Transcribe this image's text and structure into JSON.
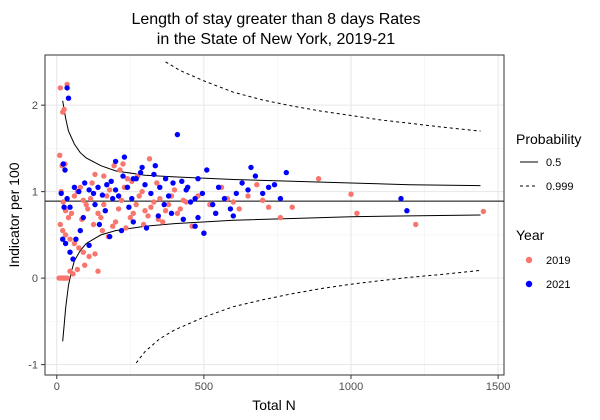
{
  "chart_data": {
    "type": "scatter",
    "title": [
      "Length of stay greater than 8 days Rates",
      "in the State of New York, 2019-21"
    ],
    "xlabel": "Total N",
    "ylabel": "Indicator per 100",
    "xlim": [
      -40,
      1520
    ],
    "ylim": [
      -1.12,
      2.58
    ],
    "x_ticks": [
      0,
      500,
      1000,
      1500
    ],
    "y_ticks": [
      -1,
      0,
      1,
      2
    ],
    "grid": true,
    "legend_position": "right",
    "reference_line": 0.89,
    "colors": {
      "2019": "#F8766D",
      "2021": "#0000FF"
    },
    "legend": {
      "probability": {
        "title": "Probability",
        "items": [
          {
            "label": "0.5",
            "linetype": "solid"
          },
          {
            "label": "0.999",
            "linetype": "dashed"
          }
        ]
      },
      "year": {
        "title": "Year",
        "items": [
          {
            "label": "2019",
            "color": "#F8766D"
          },
          {
            "label": "2021",
            "color": "#0000FF"
          }
        ]
      }
    },
    "funnel_limits": [
      {
        "probability": "0.5",
        "side": "upper",
        "points": [
          [
            20,
            2.05
          ],
          [
            30,
            1.85
          ],
          [
            40,
            1.7
          ],
          [
            60,
            1.55
          ],
          [
            80,
            1.45
          ],
          [
            100,
            1.39
          ],
          [
            150,
            1.3
          ],
          [
            200,
            1.24
          ],
          [
            300,
            1.19
          ],
          [
            400,
            1.17
          ],
          [
            600,
            1.14
          ],
          [
            800,
            1.12
          ],
          [
            1000,
            1.1
          ],
          [
            1200,
            1.08
          ],
          [
            1440,
            1.07
          ]
        ]
      },
      {
        "probability": "0.5",
        "side": "lower",
        "points": [
          [
            20,
            -0.73
          ],
          [
            25,
            -0.55
          ],
          [
            30,
            -0.35
          ],
          [
            40,
            -0.08
          ],
          [
            50,
            0.08
          ],
          [
            60,
            0.2
          ],
          [
            80,
            0.32
          ],
          [
            100,
            0.4
          ],
          [
            150,
            0.5
          ],
          [
            200,
            0.55
          ],
          [
            300,
            0.6
          ],
          [
            400,
            0.63
          ],
          [
            600,
            0.67
          ],
          [
            800,
            0.69
          ],
          [
            1000,
            0.71
          ],
          [
            1200,
            0.72
          ],
          [
            1440,
            0.73
          ]
        ]
      },
      {
        "probability": "0.999",
        "side": "upper",
        "points": [
          [
            370,
            2.5
          ],
          [
            420,
            2.4
          ],
          [
            500,
            2.28
          ],
          [
            600,
            2.15
          ],
          [
            700,
            2.06
          ],
          [
            800,
            1.99
          ],
          [
            900,
            1.93
          ],
          [
            1000,
            1.88
          ],
          [
            1100,
            1.83
          ],
          [
            1200,
            1.79
          ],
          [
            1300,
            1.75
          ],
          [
            1440,
            1.7
          ]
        ]
      },
      {
        "probability": "0.999",
        "side": "lower",
        "points": [
          [
            270,
            -0.98
          ],
          [
            300,
            -0.85
          ],
          [
            350,
            -0.7
          ],
          [
            400,
            -0.6
          ],
          [
            500,
            -0.45
          ],
          [
            600,
            -0.33
          ],
          [
            700,
            -0.25
          ],
          [
            800,
            -0.18
          ],
          [
            900,
            -0.12
          ],
          [
            1000,
            -0.07
          ],
          [
            1100,
            -0.03
          ],
          [
            1200,
            0.01
          ],
          [
            1300,
            0.04
          ],
          [
            1440,
            0.09
          ]
        ]
      }
    ],
    "series": [
      {
        "name": "2019",
        "points": [
          [
            12,
            2.2
          ],
          [
            20,
            1.92
          ],
          [
            25,
            1.95
          ],
          [
            35,
            2.24
          ],
          [
            10,
            1.42
          ],
          [
            18,
            1.3
          ],
          [
            28,
            1.32
          ],
          [
            15,
            1.0
          ],
          [
            22,
            0.88
          ],
          [
            30,
            0.78
          ],
          [
            40,
            0.7
          ],
          [
            50,
            0.75
          ],
          [
            12,
            0.62
          ],
          [
            20,
            0.55
          ],
          [
            30,
            0.5
          ],
          [
            45,
            0.45
          ],
          [
            60,
            0.4
          ],
          [
            75,
            0.35
          ],
          [
            90,
            0.3
          ],
          [
            110,
            0.25
          ],
          [
            130,
            0.28
          ],
          [
            8,
            0.0
          ],
          [
            15,
            0.0
          ],
          [
            20,
            0.0
          ],
          [
            25,
            0.0
          ],
          [
            30,
            0.0
          ],
          [
            35,
            0.0
          ],
          [
            45,
            0.08
          ],
          [
            55,
            0.05
          ],
          [
            70,
            0.1
          ],
          [
            95,
            0.15
          ],
          [
            140,
            0.08
          ],
          [
            60,
            0.95
          ],
          [
            70,
            1.0
          ],
          [
            80,
            1.05
          ],
          [
            90,
            0.9
          ],
          [
            100,
            0.85
          ],
          [
            105,
            0.8
          ],
          [
            115,
            0.92
          ],
          [
            120,
            1.1
          ],
          [
            130,
            1.2
          ],
          [
            140,
            0.75
          ],
          [
            150,
            0.7
          ],
          [
            160,
            0.85
          ],
          [
            170,
            0.95
          ],
          [
            180,
            1.02
          ],
          [
            190,
            0.6
          ],
          [
            200,
            0.65
          ],
          [
            210,
            0.8
          ],
          [
            220,
            0.9
          ],
          [
            230,
            1.05
          ],
          [
            240,
            1.15
          ],
          [
            250,
            0.7
          ],
          [
            260,
            0.75
          ],
          [
            270,
            0.85
          ],
          [
            280,
            0.95
          ],
          [
            290,
            1.0
          ],
          [
            300,
            0.78
          ],
          [
            310,
            0.72
          ],
          [
            320,
            0.82
          ],
          [
            330,
            0.88
          ],
          [
            340,
            1.1
          ],
          [
            350,
            0.92
          ],
          [
            360,
            0.65
          ],
          [
            370,
            0.78
          ],
          [
            380,
            0.85
          ],
          [
            390,
            0.95
          ],
          [
            400,
            1.02
          ],
          [
            410,
            0.75
          ],
          [
            420,
            0.8
          ],
          [
            430,
            0.9
          ],
          [
            440,
            0.88
          ],
          [
            460,
            0.6
          ],
          [
            480,
            0.95
          ],
          [
            500,
            0.52
          ],
          [
            520,
            0.85
          ],
          [
            540,
            0.75
          ],
          [
            560,
            1.05
          ],
          [
            580,
            0.92
          ],
          [
            600,
            0.88
          ],
          [
            620,
            0.8
          ],
          [
            650,
            0.95
          ],
          [
            680,
            1.08
          ],
          [
            700,
            0.9
          ],
          [
            720,
            0.82
          ],
          [
            760,
            0.7
          ],
          [
            800,
            0.82
          ],
          [
            890,
            1.15
          ],
          [
            1000,
            0.97
          ],
          [
            1020,
            0.75
          ],
          [
            1220,
            0.62
          ],
          [
            1450,
            0.77
          ],
          [
            85,
            0.68
          ],
          [
            125,
            0.62
          ],
          [
            155,
            0.55
          ],
          [
            175,
            0.48
          ],
          [
            195,
            1.3
          ],
          [
            215,
            1.25
          ],
          [
            235,
            0.58
          ],
          [
            255,
            1.12
          ],
          [
            275,
            1.18
          ],
          [
            295,
            0.62
          ],
          [
            315,
            1.38
          ],
          [
            345,
            0.68
          ],
          [
            225,
            1.32
          ],
          [
            160,
            1.18
          ]
        ]
      },
      {
        "name": "2021",
        "points": [
          [
            22,
            1.32
          ],
          [
            28,
            1.25
          ],
          [
            40,
            2.08
          ],
          [
            35,
            2.2
          ],
          [
            15,
            0.98
          ],
          [
            25,
            0.82
          ],
          [
            35,
            0.92
          ],
          [
            45,
            0.82
          ],
          [
            20,
            0.45
          ],
          [
            30,
            0.4
          ],
          [
            45,
            0.3
          ],
          [
            55,
            0.22
          ],
          [
            65,
            0.45
          ],
          [
            80,
            0.55
          ],
          [
            90,
            0.7
          ],
          [
            60,
            1.05
          ],
          [
            75,
            1.0
          ],
          [
            95,
            1.1
          ],
          [
            110,
            1.02
          ],
          [
            125,
            0.98
          ],
          [
            140,
            1.05
          ],
          [
            155,
            0.96
          ],
          [
            170,
            1.08
          ],
          [
            185,
            1.12
          ],
          [
            200,
            1.02
          ],
          [
            210,
            0.95
          ],
          [
            225,
            1.18
          ],
          [
            240,
            1.05
          ],
          [
            255,
            0.92
          ],
          [
            270,
            1.15
          ],
          [
            285,
            1.22
          ],
          [
            300,
            1.08
          ],
          [
            320,
            0.98
          ],
          [
            335,
            1.3
          ],
          [
            350,
            1.05
          ],
          [
            365,
            0.85
          ],
          [
            380,
            0.95
          ],
          [
            395,
            1.1
          ],
          [
            410,
            1.66
          ],
          [
            425,
            1.12
          ],
          [
            440,
            1.02
          ],
          [
            455,
            0.88
          ],
          [
            470,
            0.92
          ],
          [
            480,
            1.15
          ],
          [
            495,
            0.98
          ],
          [
            510,
            1.25
          ],
          [
            530,
            0.85
          ],
          [
            550,
            1.05
          ],
          [
            570,
            0.92
          ],
          [
            590,
            0.8
          ],
          [
            610,
            0.98
          ],
          [
            630,
            1.1
          ],
          [
            650,
            1.02
          ],
          [
            660,
            1.28
          ],
          [
            675,
            1.18
          ],
          [
            700,
            0.98
          ],
          [
            720,
            1.05
          ],
          [
            740,
            1.08
          ],
          [
            760,
            0.92
          ],
          [
            780,
            1.22
          ],
          [
            1170,
            0.92
          ],
          [
            1190,
            0.78
          ],
          [
            110,
            0.38
          ],
          [
            145,
            0.62
          ],
          [
            180,
            0.48
          ],
          [
            220,
            0.55
          ],
          [
            260,
            0.65
          ],
          [
            305,
            0.58
          ],
          [
            345,
            0.72
          ],
          [
            390,
            0.75
          ],
          [
            430,
            0.68
          ],
          [
            470,
            0.6
          ],
          [
            500,
            0.52
          ],
          [
            540,
            0.75
          ],
          [
            600,
            0.72
          ],
          [
            200,
            1.35
          ],
          [
            230,
            1.4
          ],
          [
            260,
            1.15
          ],
          [
            290,
            1.28
          ],
          [
            330,
            1.2
          ],
          [
            130,
            0.85
          ],
          [
            165,
            0.78
          ],
          [
            190,
            0.92
          ],
          [
            245,
            0.82
          ],
          [
            370,
            1.15
          ],
          [
            445,
            1.05
          ],
          [
            480,
            0.7
          ]
        ]
      }
    ]
  }
}
